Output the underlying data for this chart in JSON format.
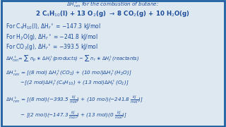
{
  "bg_color": "#dde8f0",
  "border_color": "#2060a0",
  "text_color": "#1a4a9a",
  "top_bar_color": "#3a6090",
  "line1": "2 C$_4$H$_{10}$(l) + 13 O$_2$(g) $\\rightarrow$ 8 CO$_2$(g) + 10 H$_2$O(g)",
  "line2": "For C$_4$H$_{10}$(l), $\\Delta$H$_f$$^\\circ$ = $-$147.3 kJ/mol",
  "line3": "For H$_2$O(g), $\\Delta$H$_f$$^\\circ$ = $-$241.8 kJ/mol",
  "line4": "For CO$_2$(g), $\\Delta$H$_f$$^\\circ$ = $-$393.5 kJ/mol",
  "eq1": "$\\Delta H^\\circ_{rxn}$= $\\sum$ n$_p$ $\\ast$ $\\Delta$H$^\\circ_f$(products) $-$ $\\sum$ n$_r$ $\\ast$ $\\Delta$H$^\\circ_f$(reactants)",
  "eq2a": "$\\Delta H^\\circ_{rxn}$ = [(8 mol) $\\Delta$H$^\\circ_f$(CO$_2$) + (10 mol)$\\Delta$H$^\\circ_f$(H$_2$O)]",
  "eq2b": "         $-$[(2 mol)$\\Delta$H$^\\circ_f$(C$_4$H$_{10}$) + (13 mol)$\\Delta$H$^\\circ_f$(O$_2$)]",
  "eq3a": "$\\Delta H^\\circ_{rxn}$ = [(8 mol)($-$393.5 $\\frac{kJ}{mol}$) + (10 mol)($-$241.8 $\\frac{kJ}{mol}$)]",
  "eq3b": "         $-$ [(2 mol)($-$147.3 $\\frac{kJ}{mol}$) + (13 mol)(0 $\\frac{kJ}{mol}$)]",
  "top_label": "$\\Delta$H$^\\circ_{rxn}$ for the combustion of butane:",
  "fs_line1": 6.2,
  "fs_lines": 5.5,
  "fs_eq": 5.2
}
